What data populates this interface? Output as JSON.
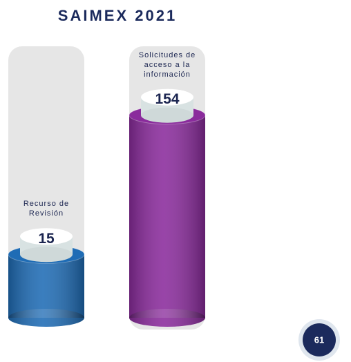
{
  "chart_data": {
    "type": "bar",
    "title": "SAIMEX 2021",
    "categories": [
      "Recurso de Revisión",
      "Solicitudes de acceso a la información"
    ],
    "values": [
      15,
      154
    ],
    "colors": [
      "#1f6cb5",
      "#8a2b9c"
    ]
  },
  "page_number": 61
}
